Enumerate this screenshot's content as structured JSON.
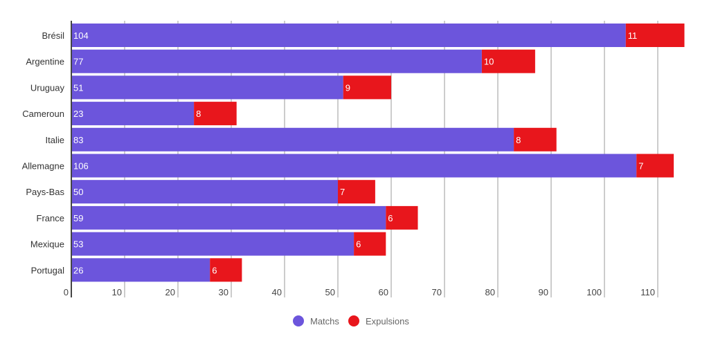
{
  "chart_data": {
    "type": "bar",
    "orientation": "horizontal",
    "stacked": true,
    "categories": [
      "Brésil",
      "Argentine",
      "Uruguay",
      "Cameroun",
      "Italie",
      "Allemagne",
      "Pays-Bas",
      "France",
      "Mexique",
      "Portugal"
    ],
    "series": [
      {
        "name": "Matchs",
        "color": "#6c55dc",
        "values": [
          104,
          77,
          51,
          23,
          83,
          106,
          50,
          59,
          53,
          26
        ]
      },
      {
        "name": "Expulsions",
        "color": "#e8161c",
        "values": [
          11,
          10,
          9,
          8,
          8,
          7,
          7,
          6,
          6,
          6
        ]
      }
    ],
    "xlim": [
      0,
      115.5
    ],
    "xticks": [
      "0",
      "10",
      "20",
      "30",
      "40",
      "50",
      "60",
      "70",
      "80",
      "90",
      "100",
      "110"
    ],
    "grid": true,
    "data_labels": true,
    "legend": "bottom",
    "title": "",
    "xlabel": "",
    "ylabel": ""
  }
}
